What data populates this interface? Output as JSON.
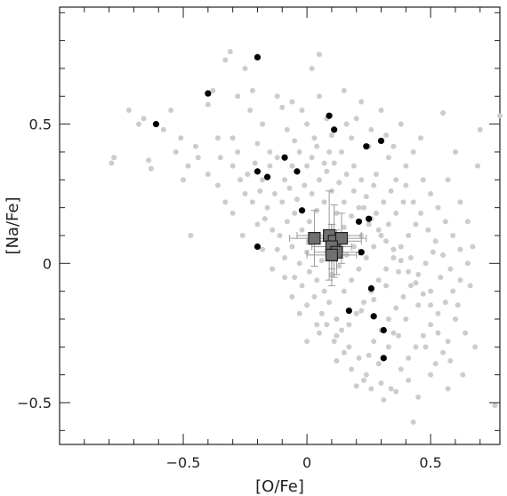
{
  "chart_data": {
    "type": "scatter",
    "title": "",
    "xlabel": "[O/Fe]",
    "ylabel": "[Na/Fe]",
    "xlim": [
      -1.0,
      0.78
    ],
    "ylim": [
      -0.65,
      0.92
    ],
    "x_ticks": [
      -0.5,
      0,
      0.5
    ],
    "x_tick_labels": [
      "−0.5",
      "0",
      "0.5"
    ],
    "y_ticks": [
      -0.5,
      0,
      0.5
    ],
    "y_tick_labels": [
      "−0.5",
      "0",
      "0.5"
    ],
    "grid": false,
    "legend": "none",
    "colors": {
      "background_sample": "#cccccc",
      "filled_circles": "#000000",
      "squares_fill": "#707070",
      "squares_edge": "#222222",
      "error_bars": "#9a9a9a"
    },
    "series": [
      {
        "marker": "circle",
        "color": "#cccccc",
        "points": [
          [
            -0.72,
            0.55
          ],
          [
            -0.78,
            0.38
          ],
          [
            -0.79,
            0.36
          ],
          [
            -0.68,
            0.5
          ],
          [
            -0.66,
            0.52
          ],
          [
            -0.64,
            0.37
          ],
          [
            -0.63,
            0.34
          ],
          [
            -0.58,
            0.48
          ],
          [
            -0.55,
            0.55
          ],
          [
            -0.51,
            0.45
          ],
          [
            -0.5,
            0.3
          ],
          [
            -0.48,
            0.35
          ],
          [
            -0.45,
            0.42
          ],
          [
            -0.47,
            0.1
          ],
          [
            -0.4,
            0.57
          ],
          [
            -0.38,
            0.62
          ],
          [
            -0.36,
            0.45
          ],
          [
            -0.33,
            0.73
          ],
          [
            -0.3,
            0.45
          ],
          [
            -0.28,
            0.4
          ],
          [
            -0.25,
            0.7
          ],
          [
            -0.22,
            0.62
          ],
          [
            -0.2,
            0.43
          ],
          [
            -0.18,
            0.5
          ],
          [
            -0.15,
            0.4
          ],
          [
            -0.12,
            0.6
          ],
          [
            -0.1,
            0.56
          ],
          [
            -0.08,
            0.48
          ],
          [
            -0.05,
            0.44
          ],
          [
            -0.02,
            0.55
          ],
          [
            0.0,
            0.5
          ],
          [
            0.03,
            0.45
          ],
          [
            0.05,
            0.6
          ],
          [
            0.08,
            0.52
          ],
          [
            0.1,
            0.46
          ],
          [
            -0.35,
            0.38
          ],
          [
            -0.3,
            0.35
          ],
          [
            -0.27,
            0.3
          ],
          [
            -0.24,
            0.32
          ],
          [
            -0.21,
            0.36
          ],
          [
            -0.18,
            0.3
          ],
          [
            -0.15,
            0.35
          ],
          [
            -0.12,
            0.38
          ],
          [
            -0.09,
            0.3
          ],
          [
            -0.06,
            0.35
          ],
          [
            -0.03,
            0.4
          ],
          [
            0.0,
            0.35
          ],
          [
            0.02,
            0.38
          ],
          [
            0.04,
            0.42
          ],
          [
            -0.25,
            0.25
          ],
          [
            -0.22,
            0.22
          ],
          [
            -0.19,
            0.26
          ],
          [
            -0.16,
            0.2
          ],
          [
            -0.13,
            0.25
          ],
          [
            -0.1,
            0.22
          ],
          [
            -0.07,
            0.27
          ],
          [
            -0.04,
            0.23
          ],
          [
            -0.01,
            0.28
          ],
          [
            0.02,
            0.25
          ],
          [
            0.05,
            0.3
          ],
          [
            0.08,
            0.33
          ],
          [
            0.11,
            0.36
          ],
          [
            0.14,
            0.4
          ],
          [
            -0.2,
            0.14
          ],
          [
            -0.17,
            0.16
          ],
          [
            -0.14,
            0.12
          ],
          [
            -0.11,
            0.1
          ],
          [
            -0.08,
            0.15
          ],
          [
            -0.05,
            0.18
          ],
          [
            -0.02,
            0.12
          ],
          [
            0.01,
            0.15
          ],
          [
            0.04,
            0.19
          ],
          [
            0.07,
            0.22
          ],
          [
            0.1,
            0.26
          ],
          [
            0.13,
            0.29
          ],
          [
            0.16,
            0.32
          ],
          [
            0.19,
            0.35
          ],
          [
            -0.12,
            0.05
          ],
          [
            -0.09,
            0.02
          ],
          [
            -0.06,
            0.06
          ],
          [
            -0.03,
            0.0
          ],
          [
            0.0,
            0.04
          ],
          [
            0.03,
            0.08
          ],
          [
            0.06,
            0.01
          ],
          [
            0.09,
            0.05
          ],
          [
            0.12,
            0.09
          ],
          [
            0.15,
            0.13
          ],
          [
            0.18,
            0.17
          ],
          [
            0.21,
            0.2
          ],
          [
            0.24,
            0.24
          ],
          [
            0.27,
            0.28
          ],
          [
            -0.05,
            -0.05
          ],
          [
            -0.02,
            -0.08
          ],
          [
            0.01,
            -0.03
          ],
          [
            0.04,
            -0.06
          ],
          [
            0.07,
            -0.1
          ],
          [
            0.1,
            -0.04
          ],
          [
            0.13,
            -0.01
          ],
          [
            0.16,
            0.03
          ],
          [
            0.19,
            0.06
          ],
          [
            0.22,
            0.1
          ],
          [
            0.25,
            0.14
          ],
          [
            0.28,
            0.18
          ],
          [
            0.31,
            0.22
          ],
          [
            0.34,
            0.26
          ],
          [
            0.0,
            -0.15
          ],
          [
            0.03,
            -0.12
          ],
          [
            0.06,
            -0.18
          ],
          [
            0.09,
            -0.14
          ],
          [
            0.12,
            -0.2
          ],
          [
            0.15,
            -0.1
          ],
          [
            0.18,
            -0.06
          ],
          [
            0.21,
            -0.02
          ],
          [
            0.24,
            0.02
          ],
          [
            0.27,
            0.06
          ],
          [
            0.3,
            0.1
          ],
          [
            0.33,
            0.14
          ],
          [
            0.36,
            0.18
          ],
          [
            0.39,
            0.22
          ],
          [
            0.05,
            -0.25
          ],
          [
            0.08,
            -0.22
          ],
          [
            0.11,
            -0.28
          ],
          [
            0.14,
            -0.24
          ],
          [
            0.17,
            -0.3
          ],
          [
            0.2,
            -0.18
          ],
          [
            0.23,
            -0.14
          ],
          [
            0.26,
            -0.1
          ],
          [
            0.29,
            -0.06
          ],
          [
            0.32,
            -0.02
          ],
          [
            0.35,
            0.02
          ],
          [
            0.38,
            0.06
          ],
          [
            0.41,
            0.1
          ],
          [
            0.44,
            0.14
          ],
          [
            0.12,
            -0.35
          ],
          [
            0.15,
            -0.32
          ],
          [
            0.18,
            -0.38
          ],
          [
            0.21,
            -0.34
          ],
          [
            0.24,
            -0.4
          ],
          [
            0.27,
            -0.28
          ],
          [
            0.3,
            -0.24
          ],
          [
            0.33,
            -0.2
          ],
          [
            0.36,
            -0.16
          ],
          [
            0.39,
            -0.12
          ],
          [
            0.42,
            -0.08
          ],
          [
            0.45,
            -0.04
          ],
          [
            0.48,
            0.0
          ],
          [
            0.51,
            0.04
          ],
          [
            0.2,
            -0.44
          ],
          [
            0.23,
            -0.42
          ],
          [
            0.26,
            -0.45
          ],
          [
            0.3,
            -0.43
          ],
          [
            0.34,
            -0.45
          ],
          [
            0.38,
            -0.38
          ],
          [
            0.41,
            -0.34
          ],
          [
            0.44,
            -0.3
          ],
          [
            0.47,
            -0.26
          ],
          [
            0.5,
            -0.22
          ],
          [
            0.53,
            -0.18
          ],
          [
            0.56,
            -0.14
          ],
          [
            0.59,
            -0.1
          ],
          [
            0.62,
            -0.06
          ],
          [
            0.46,
            0.45
          ],
          [
            0.43,
            0.4
          ],
          [
            0.4,
            0.35
          ],
          [
            0.47,
            0.3
          ],
          [
            0.5,
            0.25
          ],
          [
            0.53,
            0.2
          ],
          [
            0.56,
            0.15
          ],
          [
            0.59,
            0.1
          ],
          [
            0.62,
            0.05
          ],
          [
            0.65,
            0.0
          ],
          [
            0.6,
            -0.2
          ],
          [
            0.64,
            -0.25
          ],
          [
            0.68,
            -0.3
          ],
          [
            0.55,
            -0.32
          ],
          [
            0.45,
            -0.48
          ],
          [
            0.43,
            -0.57
          ],
          [
            0.5,
            -0.4
          ],
          [
            0.58,
            -0.35
          ],
          [
            0.66,
            -0.08
          ],
          [
            0.67,
            0.06
          ],
          [
            0.69,
            0.35
          ],
          [
            0.55,
            0.54
          ],
          [
            0.38,
            0.5
          ],
          [
            0.3,
            0.55
          ],
          [
            0.22,
            0.58
          ],
          [
            0.15,
            0.62
          ],
          [
            0.05,
            0.75
          ],
          [
            0.02,
            0.7
          ],
          [
            -0.06,
            0.58
          ],
          [
            0.18,
            0.45
          ],
          [
            0.25,
            0.42
          ],
          [
            0.33,
            0.38
          ],
          [
            0.36,
            0.3
          ],
          [
            0.28,
            0.32
          ],
          [
            0.22,
            0.3
          ],
          [
            0.4,
            0.28
          ],
          [
            0.43,
            0.22
          ],
          [
            0.46,
            0.18
          ],
          [
            0.49,
            0.12
          ],
          [
            0.52,
            0.08
          ],
          [
            0.55,
            0.03
          ],
          [
            0.58,
            -0.02
          ],
          [
            0.42,
            0.02
          ],
          [
            0.37,
            -0.03
          ],
          [
            0.32,
            -0.08
          ],
          [
            0.27,
            -0.13
          ],
          [
            0.22,
            -0.17
          ],
          [
            0.17,
            -0.22
          ],
          [
            0.12,
            -0.26
          ],
          [
            0.35,
            -0.25
          ],
          [
            0.4,
            -0.2
          ],
          [
            0.45,
            -0.15
          ],
          [
            0.5,
            -0.1
          ],
          [
            0.54,
            -0.05
          ],
          [
            0.48,
            -0.3
          ],
          [
            0.52,
            -0.36
          ],
          [
            0.25,
            -0.33
          ],
          [
            0.29,
            -0.36
          ],
          [
            0.33,
            -0.3
          ],
          [
            0.37,
            -0.26
          ],
          [
            0.41,
            -0.42
          ],
          [
            0.36,
            -0.46
          ],
          [
            0.31,
            -0.49
          ],
          [
            0.04,
            -0.22
          ],
          [
            0.0,
            -0.28
          ],
          [
            -0.03,
            -0.18
          ],
          [
            -0.06,
            -0.12
          ],
          [
            -0.09,
            -0.05
          ],
          [
            -0.14,
            -0.02
          ],
          [
            -0.18,
            0.05
          ],
          [
            -0.26,
            0.1
          ],
          [
            -0.3,
            0.18
          ],
          [
            -0.33,
            0.22
          ],
          [
            -0.36,
            0.28
          ],
          [
            -0.4,
            0.32
          ],
          [
            -0.44,
            0.38
          ],
          [
            -0.53,
            0.4
          ],
          [
            0.16,
            0.5
          ],
          [
            0.2,
            0.52
          ],
          [
            0.26,
            0.48
          ],
          [
            0.32,
            0.46
          ],
          [
            0.35,
            0.42
          ],
          [
            0.09,
            0.4
          ],
          [
            0.07,
            0.36
          ],
          [
            0.12,
            0.18
          ],
          [
            0.15,
            0.22
          ],
          [
            0.19,
            0.26
          ],
          [
            0.23,
            0.2
          ],
          [
            0.26,
            0.16
          ],
          [
            0.29,
            0.12
          ],
          [
            0.32,
            0.08
          ],
          [
            0.35,
            0.05
          ],
          [
            0.38,
            0.01
          ],
          [
            0.41,
            -0.03
          ],
          [
            0.44,
            -0.07
          ],
          [
            0.47,
            -0.11
          ],
          [
            0.5,
            -0.15
          ],
          [
            0.53,
            -0.25
          ],
          [
            0.57,
            -0.28
          ],
          [
            0.61,
            -0.15
          ],
          [
            0.63,
            -0.4
          ],
          [
            0.57,
            -0.45
          ],
          [
            0.62,
            0.22
          ],
          [
            0.65,
            0.15
          ],
          [
            0.57,
            0.3
          ],
          [
            0.76,
            -0.51
          ],
          [
            0.78,
            0.53
          ],
          [
            0.7,
            0.48
          ],
          [
            0.6,
            0.4
          ],
          [
            -0.31,
            0.76
          ],
          [
            -0.28,
            0.6
          ],
          [
            -0.23,
            0.55
          ]
        ]
      },
      {
        "marker": "filled-circle",
        "color": "#000000",
        "points": [
          [
            -0.2,
            0.74
          ],
          [
            -0.4,
            0.61
          ],
          [
            -0.61,
            0.5
          ],
          [
            0.09,
            0.53
          ],
          [
            0.11,
            0.48
          ],
          [
            0.3,
            0.44
          ],
          [
            0.24,
            0.42
          ],
          [
            -0.09,
            0.38
          ],
          [
            -0.2,
            0.33
          ],
          [
            -0.04,
            0.33
          ],
          [
            -0.16,
            0.31
          ],
          [
            -0.02,
            0.19
          ],
          [
            0.25,
            0.16
          ],
          [
            0.21,
            0.15
          ],
          [
            -0.2,
            0.06
          ],
          [
            0.22,
            0.04
          ],
          [
            0.26,
            -0.09
          ],
          [
            0.17,
            -0.17
          ],
          [
            0.27,
            -0.19
          ],
          [
            0.31,
            -0.24
          ],
          [
            0.31,
            -0.34
          ]
        ]
      },
      {
        "marker": "square-with-errorbars",
        "color": "#707070",
        "points": [
          {
            "x": 0.03,
            "y": 0.09,
            "xerr": 0.1,
            "yerr": 0.1
          },
          {
            "x": 0.09,
            "y": 0.1,
            "xerr": 0.13,
            "yerr": 0.16
          },
          {
            "x": 0.11,
            "y": 0.08,
            "xerr": 0.11,
            "yerr": 0.13
          },
          {
            "x": 0.14,
            "y": 0.09,
            "xerr": 0.1,
            "yerr": 0.09
          },
          {
            "x": 0.1,
            "y": 0.06,
            "xerr": 0.08,
            "yerr": 0.08
          },
          {
            "x": 0.12,
            "y": 0.04,
            "xerr": 0.09,
            "yerr": 0.08
          },
          {
            "x": 0.1,
            "y": 0.03,
            "xerr": 0.1,
            "yerr": 0.11
          }
        ]
      }
    ]
  }
}
